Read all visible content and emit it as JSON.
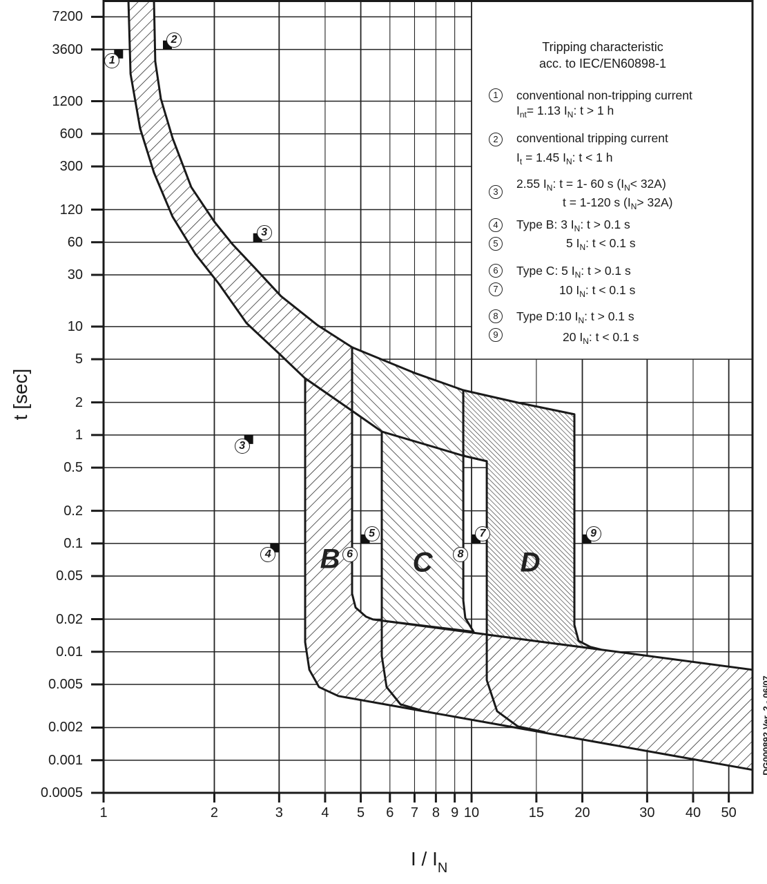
{
  "chart_data": {
    "type": "area",
    "title": "Tripping characteristic acc. to IEC/EN60898-1",
    "xlabel": "I / I",
    "xlabel_sub": "N",
    "ylabel": "t [sec]",
    "x_scale": "log",
    "y_scale": "log",
    "xlim": [
      1,
      58
    ],
    "ylim": [
      0.0005,
      10300
    ],
    "grid": true,
    "legend_placement": "top-right",
    "x_ticks": [
      1,
      2,
      3,
      4,
      5,
      6,
      7,
      8,
      9,
      10,
      15,
      20,
      30,
      40,
      50
    ],
    "x_tick_labels": [
      "1",
      "2",
      "3",
      "4",
      "5",
      "6",
      "7",
      "8",
      "9",
      "10",
      "15",
      "20",
      "30",
      "40",
      "50"
    ],
    "y_ticks": [
      7200,
      3600,
      1200,
      600,
      300,
      120,
      60,
      30,
      10,
      5,
      2,
      1,
      0.5,
      0.2,
      0.1,
      0.05,
      0.02,
      0.01,
      0.005,
      0.002,
      0.001,
      0.0005
    ],
    "y_tick_labels": [
      "7200",
      "3600",
      "1200",
      "600",
      "300",
      "120",
      "60",
      "30",
      "10",
      "5",
      "2",
      "1",
      "0.5",
      "0.2",
      "0.1",
      "0.05",
      "0.02",
      "0.01",
      "0.005",
      "0.002",
      "0.001",
      "0.0005"
    ],
    "regions": [
      {
        "id": "thermal",
        "hatch": "forward",
        "points": [
          [
            1.168,
            10300
          ],
          [
            1.184,
            2144
          ],
          [
            1.257,
            673
          ],
          [
            1.371,
            263
          ],
          [
            1.54,
            103
          ],
          [
            1.777,
            46.7
          ],
          [
            2.058,
            24.8
          ],
          [
            2.446,
            10.76
          ],
          [
            2.984,
            5.73
          ],
          [
            3.53,
            3.33
          ],
          [
            4.735,
            1.67
          ],
          [
            4.735,
            6.44
          ],
          [
            3.816,
            10.3
          ],
          [
            3.035,
            19.1
          ],
          [
            2.587,
            34.3
          ],
          [
            2.243,
            57.3
          ],
          [
            2.0,
            92.9
          ],
          [
            1.731,
            193.5
          ],
          [
            1.54,
            548
          ],
          [
            1.431,
            1265
          ],
          [
            1.382,
            2792
          ],
          [
            1.371,
            10300
          ]
        ]
      },
      {
        "id": "B",
        "label": "B",
        "label_at": [
          4.125,
          0.0714
        ],
        "hatch": "forward",
        "points": [
          [
            3.53,
            3.33
          ],
          [
            4.735,
            1.67
          ],
          [
            4.735,
            0.0343
          ],
          [
            4.84,
            0.0256
          ],
          [
            5.165,
            0.0211
          ],
          [
            5.393,
            0.0199
          ],
          [
            58.0,
            0.00683
          ],
          [
            58.0,
            0.000815
          ],
          [
            4.345,
            0.00391
          ],
          [
            3.85,
            0.00473
          ],
          [
            3.624,
            0.00683
          ],
          [
            3.53,
            0.01228
          ]
        ]
      },
      {
        "id": "C",
        "label": "C",
        "label_at": [
          7.36,
          0.0663
        ],
        "hatch": "backward",
        "points": [
          [
            4.735,
            6.44
          ],
          [
            6.99,
            3.74
          ],
          [
            9.495,
            2.59
          ],
          [
            9.495,
            0.0296
          ],
          [
            9.618,
            0.0205
          ],
          [
            10.13,
            0.0153
          ],
          [
            5.703,
            0.0194
          ],
          [
            5.703,
            1.076
          ],
          [
            4.735,
            1.67
          ]
        ]
      },
      {
        "id": "D",
        "label": "D",
        "label_at": [
          14.44,
          0.0663
        ],
        "hatch": "dense",
        "points": [
          [
            9.495,
            2.59
          ],
          [
            13.36,
            1.99
          ],
          [
            19.03,
            1.553
          ],
          [
            19.03,
            0.0177
          ],
          [
            19.54,
            0.0126
          ],
          [
            21.02,
            0.0111
          ],
          [
            22.43,
            0.0105
          ],
          [
            11.0,
            0.0144
          ],
          [
            11.0,
            0.573
          ],
          [
            9.495,
            0.644
          ]
        ]
      }
    ],
    "curves": [
      {
        "id": "thermal-lower-line",
        "points": [
          [
            5.703,
            1.076
          ],
          [
            9.495,
            0.644
          ],
          [
            11.0,
            0.573
          ]
        ]
      },
      {
        "id": "C-instantaneous-curve",
        "points": [
          [
            5.703,
            0.0194
          ],
          [
            5.703,
            0.00916
          ],
          [
            5.877,
            0.00473
          ],
          [
            6.41,
            0.00328
          ],
          [
            7.3,
            0.00288
          ]
        ]
      },
      {
        "id": "D-instantaneous-curve",
        "points": [
          [
            11.0,
            0.0144
          ],
          [
            11.0,
            0.00548
          ],
          [
            11.73,
            0.00283
          ],
          [
            13.36,
            0.00205
          ],
          [
            15.88,
            0.00181
          ]
        ]
      }
    ],
    "markers": [
      {
        "num": "1",
        "I": 1.13,
        "t": 3600,
        "side": "lower-left",
        "flag": true
      },
      {
        "num": "2",
        "I": 1.45,
        "t": 3600,
        "side": "upper-right",
        "flag": true
      },
      {
        "num": "3",
        "I": 2.55,
        "t": 60,
        "side": "upper-right",
        "flag": true
      },
      {
        "num": "3",
        "I": 2.55,
        "t": 1,
        "side": "lower-left",
        "flag": true
      },
      {
        "num": "4",
        "I": 3,
        "t": 0.1,
        "side": "lower-left",
        "flag": true
      },
      {
        "num": "5",
        "I": 5,
        "t": 0.1,
        "side": "upper-right",
        "flag": true
      },
      {
        "num": "6",
        "I": 5,
        "t": 0.1,
        "side": "lower-left",
        "flag": false
      },
      {
        "num": "7",
        "I": 10,
        "t": 0.1,
        "side": "upper-right",
        "flag": true
      },
      {
        "num": "8",
        "I": 10,
        "t": 0.1,
        "side": "lower-left",
        "flag": false
      },
      {
        "num": "9",
        "I": 20,
        "t": 0.1,
        "side": "upper-right",
        "flag": true
      }
    ],
    "annotation": "DG000892 Ver. 2 - 06/07"
  },
  "legend": {
    "title_lines": [
      "Tripping characteristic",
      "acc. to IEC/EN60898-1"
    ],
    "items": [
      {
        "num": "1",
        "lines": [
          [
            {
              "t": "conventional non-tripping current"
            }
          ],
          [
            {
              "t": "I"
            },
            {
              "s": "nt"
            },
            {
              "t": "= 1.13 I"
            },
            {
              "s": "N"
            },
            {
              "t": ": t > 1 h"
            }
          ]
        ]
      },
      {
        "num": "2",
        "lines": [
          [
            {
              "t": "conventional tripping current"
            }
          ],
          [
            {
              "t": "I"
            },
            {
              "s": "t"
            },
            {
              "t": " = 1.45 I"
            },
            {
              "s": "N"
            },
            {
              "t": ": t < 1 h"
            }
          ]
        ]
      },
      {
        "num": "3",
        "lines": [
          [
            {
              "t": "2.55 I"
            },
            {
              "s": "N"
            },
            {
              "t": ": t = 1- 60 s (I"
            },
            {
              "s": "N"
            },
            {
              "t": "< 32A)"
            }
          ],
          [
            {
              "t": "t = 1-120 s (I"
            },
            {
              "s": "N"
            },
            {
              "t": "> 32A)"
            }
          ]
        ]
      },
      {
        "num": "4",
        "lines": [
          [
            {
              "t": "Type B: 3 I"
            },
            {
              "s": "N"
            },
            {
              "t": ": t > 0.1 s"
            }
          ]
        ]
      },
      {
        "num": "5",
        "lines": [
          [
            {
              "t": "5 I"
            },
            {
              "s": "N"
            },
            {
              "t": ": t < 0.1 s"
            }
          ]
        ]
      },
      {
        "num": "6",
        "lines": [
          [
            {
              "t": "Type C: 5 I"
            },
            {
              "s": "N"
            },
            {
              "t": ": t > 0.1 s"
            }
          ]
        ]
      },
      {
        "num": "7",
        "lines": [
          [
            {
              "t": "10 I"
            },
            {
              "s": "N"
            },
            {
              "t": ": t < 0.1 s"
            }
          ]
        ]
      },
      {
        "num": "8",
        "lines": [
          [
            {
              "t": "Type D:10 I"
            },
            {
              "s": "N"
            },
            {
              "t": ": t > 0.1 s"
            }
          ]
        ]
      },
      {
        "num": "9",
        "lines": [
          [
            {
              "t": "20 I"
            },
            {
              "s": "N"
            },
            {
              "t": ": t < 0.1 s"
            }
          ]
        ]
      }
    ]
  },
  "colors": {
    "ink": "#1a1a1a",
    "background": "#ffffff"
  }
}
